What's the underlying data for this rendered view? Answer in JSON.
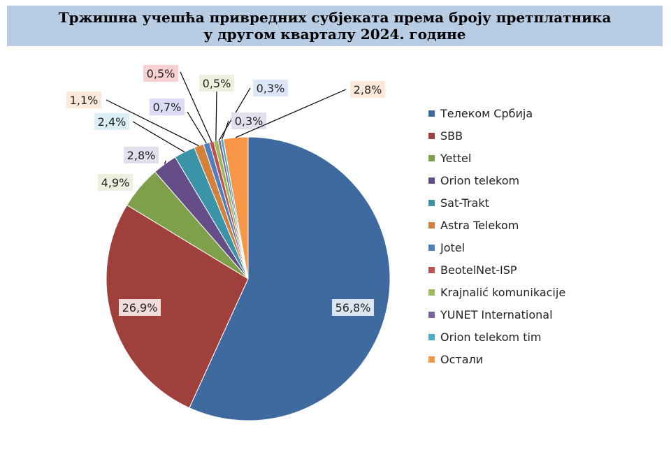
{
  "chart_data": {
    "type": "pie",
    "title_line1": "Тржишна учешћа привредних субјеката према броју претплатника",
    "title_line2": "у другом кварталу 2024. године",
    "slices": [
      {
        "name": "Телеком Србија",
        "value": 56.8,
        "label": "56,8%",
        "color": "#3f6aa0"
      },
      {
        "name": "SBB",
        "value": 26.9,
        "label": "26,9%",
        "color": "#a0403d"
      },
      {
        "name": "Yettel",
        "value": 4.9,
        "label": "4,9%",
        "color": "#7ea04a"
      },
      {
        "name": "Orion telekom",
        "value": 2.8,
        "label": "2,8%",
        "color": "#654d88"
      },
      {
        "name": "Sat-Trakt",
        "value": 2.4,
        "label": "2,4%",
        "color": "#3a93a6"
      },
      {
        "name": "Astra Telekom",
        "value": 1.1,
        "label": "1,1%",
        "color": "#d5803a"
      },
      {
        "name": "Jotel",
        "value": 0.7,
        "label": "0,7%",
        "color": "#4d80bf"
      },
      {
        "name": "BeotelNet-ISP",
        "value": 0.5,
        "label": "0,5%",
        "color": "#c0504d"
      },
      {
        "name": "Krajnalić komunikacije",
        "value": 0.5,
        "label": "0,5%",
        "color": "#9bbb59"
      },
      {
        "name": "YUNET International",
        "value": 0.3,
        "label": "0,3%",
        "color": "#8064a2"
      },
      {
        "name": "Orion telekom tim",
        "value": 0.3,
        "label": "0,3%",
        "color": "#4bacc6"
      },
      {
        "name": "Остали",
        "value": 2.8,
        "label": "2,8%",
        "color": "#f79646"
      }
    ],
    "label_box_colors": [
      "#dce6f2",
      "#f2dcdb",
      "#ebf1de",
      "#e4dfec",
      "#dbeef4",
      "#fde9d9",
      "#dcdcf8",
      "#f8d0d0",
      "#ebf1de",
      "#dce6f8",
      "#e4dfec",
      "#fde9d9"
    ],
    "legend_position": "right"
  }
}
